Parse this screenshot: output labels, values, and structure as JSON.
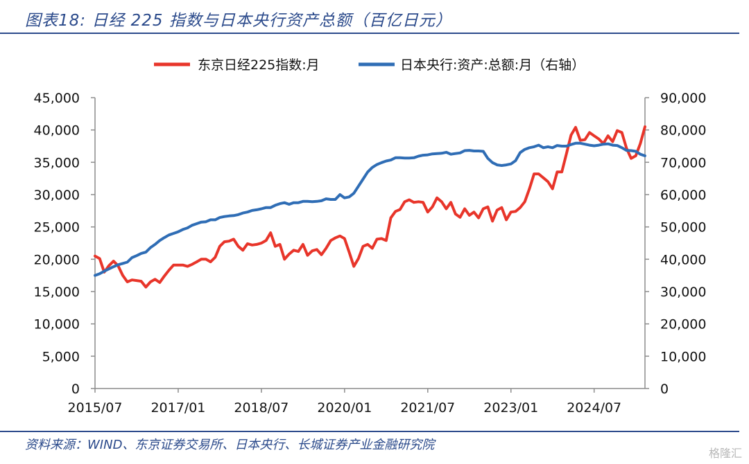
{
  "header": {
    "title": "图表18:  日经 225 指数与日本央行资产总额（百亿日元）"
  },
  "footer": {
    "source": "资料来源：WIND、东京证券交易所、日本央行、长城证券产业金融研究院",
    "watermark": "格隆汇"
  },
  "chart_data": {
    "type": "line",
    "title": "日经 225 指数与日本央行资产总额（百亿日元）",
    "xlabel": "",
    "ylabel": "",
    "x_tick_labels": [
      "2015/07",
      "2017/01",
      "2018/07",
      "2020/01",
      "2021/07",
      "2023/01",
      "2024/07"
    ],
    "y_left": {
      "ylim": [
        0,
        45000
      ],
      "ticks": [
        "0",
        "5,000",
        "10,000",
        "15,000",
        "20,000",
        "25,000",
        "30,000",
        "35,000",
        "40,000",
        "45,000"
      ]
    },
    "y_right": {
      "ylim": [
        0,
        90000
      ],
      "ticks": [
        "0",
        "10,000",
        "20,000",
        "30,000",
        "40,000",
        "50,000",
        "60,000",
        "70,000",
        "80,000",
        "90,000"
      ]
    },
    "legend_position": "top",
    "grid": false,
    "x_start": "2015/07",
    "x_end": "2025/06",
    "series": [
      {
        "name": "东京日经225指数:月",
        "axis": "left",
        "color": "#e8352a",
        "values": [
          [
            201507,
            20500
          ],
          [
            201508,
            20100
          ],
          [
            201509,
            18000
          ],
          [
            201510,
            19000
          ],
          [
            201511,
            19700
          ],
          [
            201512,
            19000
          ],
          [
            201601,
            17500
          ],
          [
            201602,
            16500
          ],
          [
            201603,
            16800
          ],
          [
            201604,
            16700
          ],
          [
            201605,
            16600
          ],
          [
            201606,
            15700
          ],
          [
            201607,
            16500
          ],
          [
            201608,
            16900
          ],
          [
            201609,
            16400
          ],
          [
            201610,
            17400
          ],
          [
            201611,
            18300
          ],
          [
            201612,
            19100
          ],
          [
            201701,
            19100
          ],
          [
            201702,
            19100
          ],
          [
            201703,
            18900
          ],
          [
            201704,
            19200
          ],
          [
            201705,
            19600
          ],
          [
            201706,
            20000
          ],
          [
            201707,
            20000
          ],
          [
            201708,
            19600
          ],
          [
            201709,
            20300
          ],
          [
            201710,
            22000
          ],
          [
            201711,
            22700
          ],
          [
            201712,
            22800
          ],
          [
            201801,
            23100
          ],
          [
            201802,
            22000
          ],
          [
            201803,
            21400
          ],
          [
            201804,
            22400
          ],
          [
            201805,
            22200
          ],
          [
            201806,
            22300
          ],
          [
            201807,
            22500
          ],
          [
            201808,
            22900
          ],
          [
            201809,
            24100
          ],
          [
            201810,
            22000
          ],
          [
            201811,
            22300
          ],
          [
            201812,
            20000
          ],
          [
            201901,
            20800
          ],
          [
            201902,
            21400
          ],
          [
            201903,
            21200
          ],
          [
            201904,
            22300
          ],
          [
            201905,
            20600
          ],
          [
            201906,
            21300
          ],
          [
            201907,
            21500
          ],
          [
            201908,
            20700
          ],
          [
            201909,
            21700
          ],
          [
            201910,
            22900
          ],
          [
            201911,
            23300
          ],
          [
            201912,
            23600
          ],
          [
            202001,
            23200
          ],
          [
            202002,
            21100
          ],
          [
            202003,
            18900
          ],
          [
            202004,
            20100
          ],
          [
            202005,
            22000
          ],
          [
            202006,
            22300
          ],
          [
            202007,
            21700
          ],
          [
            202008,
            23100
          ],
          [
            202009,
            23200
          ],
          [
            202010,
            22900
          ],
          [
            202011,
            26400
          ],
          [
            202012,
            27400
          ],
          [
            202101,
            27700
          ],
          [
            202102,
            28900
          ],
          [
            202103,
            29200
          ],
          [
            202104,
            28800
          ],
          [
            202105,
            28900
          ],
          [
            202106,
            28800
          ],
          [
            202107,
            27300
          ],
          [
            202108,
            28100
          ],
          [
            202109,
            29500
          ],
          [
            202110,
            28900
          ],
          [
            202111,
            27800
          ],
          [
            202112,
            28800
          ],
          [
            202201,
            27000
          ],
          [
            202202,
            26500
          ],
          [
            202203,
            27800
          ],
          [
            202204,
            26800
          ],
          [
            202205,
            27300
          ],
          [
            202206,
            26400
          ],
          [
            202207,
            27800
          ],
          [
            202208,
            28100
          ],
          [
            202209,
            25900
          ],
          [
            202210,
            27600
          ],
          [
            202211,
            28000
          ],
          [
            202212,
            26100
          ],
          [
            202301,
            27300
          ],
          [
            202302,
            27400
          ],
          [
            202303,
            28000
          ],
          [
            202304,
            28900
          ],
          [
            202305,
            30900
          ],
          [
            202306,
            33200
          ],
          [
            202307,
            33200
          ],
          [
            202308,
            32600
          ],
          [
            202309,
            32000
          ],
          [
            202310,
            30900
          ],
          [
            202311,
            33500
          ],
          [
            202312,
            33500
          ],
          [
            202401,
            36300
          ],
          [
            202402,
            39200
          ],
          [
            202403,
            40400
          ],
          [
            202404,
            38400
          ],
          [
            202405,
            38500
          ],
          [
            202406,
            39600
          ],
          [
            202407,
            39100
          ],
          [
            202408,
            38600
          ],
          [
            202409,
            37900
          ],
          [
            202410,
            39100
          ],
          [
            202411,
            38200
          ],
          [
            202412,
            39900
          ],
          [
            202501,
            39600
          ],
          [
            202502,
            37200
          ],
          [
            202503,
            35600
          ],
          [
            202504,
            36000
          ],
          [
            202505,
            37900
          ],
          [
            202506,
            40500
          ]
        ]
      },
      {
        "name": "日本央行:资产:总额:月（右轴）",
        "axis": "right",
        "color": "#2f6db5",
        "values": [
          [
            201507,
            35000
          ],
          [
            201508,
            35500
          ],
          [
            201509,
            36300
          ],
          [
            201510,
            37000
          ],
          [
            201511,
            37700
          ],
          [
            201512,
            38300
          ],
          [
            201601,
            38700
          ],
          [
            201602,
            39100
          ],
          [
            201603,
            40500
          ],
          [
            201604,
            41100
          ],
          [
            201605,
            41800
          ],
          [
            201606,
            42200
          ],
          [
            201607,
            43600
          ],
          [
            201608,
            44600
          ],
          [
            201609,
            45800
          ],
          [
            201610,
            46700
          ],
          [
            201611,
            47500
          ],
          [
            201612,
            48000
          ],
          [
            201701,
            48500
          ],
          [
            201702,
            49200
          ],
          [
            201703,
            49700
          ],
          [
            201704,
            50500
          ],
          [
            201705,
            51000
          ],
          [
            201706,
            51500
          ],
          [
            201707,
            51600
          ],
          [
            201708,
            52200
          ],
          [
            201709,
            52200
          ],
          [
            201710,
            52900
          ],
          [
            201711,
            53200
          ],
          [
            201712,
            53400
          ],
          [
            201801,
            53500
          ],
          [
            201802,
            53800
          ],
          [
            201803,
            54300
          ],
          [
            201804,
            54600
          ],
          [
            201805,
            55100
          ],
          [
            201806,
            55300
          ],
          [
            201807,
            55600
          ],
          [
            201808,
            56000
          ],
          [
            201809,
            56000
          ],
          [
            201810,
            56700
          ],
          [
            201811,
            57200
          ],
          [
            201812,
            57500
          ],
          [
            201901,
            57000
          ],
          [
            201902,
            57500
          ],
          [
            201903,
            57500
          ],
          [
            201904,
            57900
          ],
          [
            201905,
            57900
          ],
          [
            201906,
            57800
          ],
          [
            201907,
            57900
          ],
          [
            201908,
            58100
          ],
          [
            201909,
            58700
          ],
          [
            201910,
            58500
          ],
          [
            201911,
            58500
          ],
          [
            201912,
            60000
          ],
          [
            202001,
            59000
          ],
          [
            202002,
            59300
          ],
          [
            202003,
            60400
          ],
          [
            202004,
            62600
          ],
          [
            202005,
            64800
          ],
          [
            202006,
            67000
          ],
          [
            202007,
            68400
          ],
          [
            202008,
            69300
          ],
          [
            202009,
            69900
          ],
          [
            202010,
            70400
          ],
          [
            202011,
            70700
          ],
          [
            202012,
            71400
          ],
          [
            202101,
            71400
          ],
          [
            202102,
            71300
          ],
          [
            202103,
            71300
          ],
          [
            202104,
            71400
          ],
          [
            202105,
            71900
          ],
          [
            202106,
            72200
          ],
          [
            202107,
            72300
          ],
          [
            202108,
            72600
          ],
          [
            202109,
            72700
          ],
          [
            202110,
            72800
          ],
          [
            202111,
            73100
          ],
          [
            202112,
            72500
          ],
          [
            202201,
            72700
          ],
          [
            202202,
            72900
          ],
          [
            202203,
            73600
          ],
          [
            202204,
            73700
          ],
          [
            202205,
            73500
          ],
          [
            202206,
            73500
          ],
          [
            202207,
            73400
          ],
          [
            202208,
            71200
          ],
          [
            202209,
            69900
          ],
          [
            202210,
            69200
          ],
          [
            202211,
            69000
          ],
          [
            202212,
            69200
          ],
          [
            202301,
            69500
          ],
          [
            202302,
            70500
          ],
          [
            202303,
            73000
          ],
          [
            202304,
            74000
          ],
          [
            202305,
            74500
          ],
          [
            202306,
            74800
          ],
          [
            202307,
            75300
          ],
          [
            202308,
            74500
          ],
          [
            202309,
            74800
          ],
          [
            202310,
            74500
          ],
          [
            202311,
            75200
          ],
          [
            202312,
            75000
          ],
          [
            202401,
            75000
          ],
          [
            202402,
            75500
          ],
          [
            202403,
            75900
          ],
          [
            202404,
            75900
          ],
          [
            202405,
            75600
          ],
          [
            202406,
            75300
          ],
          [
            202407,
            75100
          ],
          [
            202408,
            75300
          ],
          [
            202409,
            75600
          ],
          [
            202410,
            75700
          ],
          [
            202411,
            75300
          ],
          [
            202412,
            75200
          ],
          [
            202501,
            74500
          ],
          [
            202502,
            73700
          ],
          [
            202503,
            73600
          ],
          [
            202504,
            73400
          ],
          [
            202505,
            72500
          ],
          [
            202506,
            72000
          ]
        ]
      }
    ]
  }
}
